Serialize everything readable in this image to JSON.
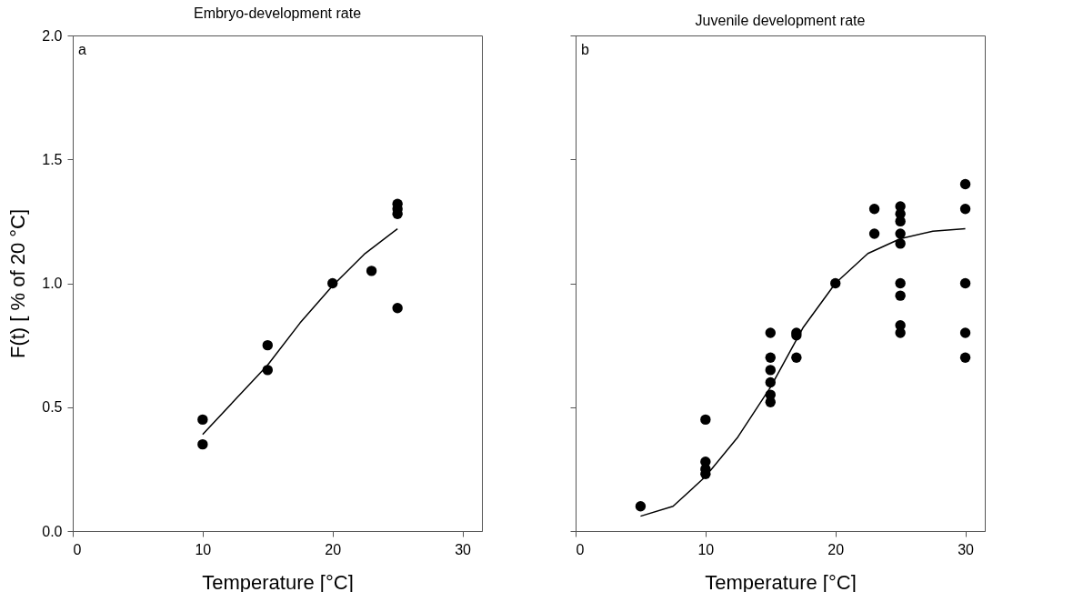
{
  "chart_data": [
    {
      "type": "scatter",
      "title": "Embryo-development rate",
      "xlabel": "Temperature [°C]",
      "ylabel": "F(t) [ % of 20 °C]",
      "annotations": [
        "a"
      ],
      "xlim": [
        0,
        31.5
      ],
      "ylim": [
        0,
        2
      ],
      "xticks": [
        0,
        10,
        20,
        30
      ],
      "yticks": [
        {
          "value": 0,
          "label": "0.0"
        },
        {
          "value": 0.5,
          "label": "0.5"
        },
        {
          "value": 1,
          "label": "1.0"
        },
        {
          "value": 1.5,
          "label": "1.5"
        },
        {
          "value": 2,
          "label": "2.0"
        }
      ],
      "grid": false,
      "series": [
        {
          "type": "scatter",
          "color": "#000000",
          "marker": "circle",
          "x": [
            10,
            10,
            15,
            15,
            20,
            23,
            25,
            25,
            25,
            25
          ],
          "values": [
            0.45,
            0.35,
            0.75,
            0.65,
            1.0,
            1.05,
            0.9,
            1.28,
            1.3,
            1.32
          ]
        },
        {
          "type": "line",
          "color": "#000000",
          "x": [
            10,
            12.5,
            15,
            17.5,
            20,
            22.5,
            25
          ],
          "values": [
            0.39,
            0.53,
            0.67,
            0.84,
            0.99,
            1.12,
            1.22
          ]
        }
      ]
    },
    {
      "type": "scatter",
      "title": "Juvenile development rate",
      "xlabel": "Temperature [°C]",
      "annotations": [
        "b"
      ],
      "xlim": [
        0,
        31.5
      ],
      "ylim": [
        0,
        2
      ],
      "xticks": [
        0,
        10,
        20,
        30
      ],
      "yticks": [
        0,
        0.5,
        1,
        1.5,
        2
      ],
      "tick_labels": "x",
      "grid": false,
      "series": [
        {
          "type": "scatter",
          "color": "#000000",
          "marker": "circle",
          "x": [
            5,
            10,
            10,
            10,
            10,
            15,
            15,
            15,
            15,
            15,
            15,
            17,
            17,
            17,
            20,
            23,
            23,
            25,
            25,
            25,
            25,
            25,
            25,
            25,
            25,
            25,
            30,
            30,
            30,
            30,
            30
          ],
          "values": [
            0.1,
            0.45,
            0.28,
            0.25,
            0.23,
            0.8,
            0.7,
            0.65,
            0.6,
            0.55,
            0.52,
            0.8,
            0.79,
            0.7,
            1.0,
            1.3,
            1.2,
            1.31,
            1.28,
            1.25,
            1.2,
            1.16,
            1.0,
            0.95,
            0.83,
            0.8,
            1.4,
            1.3,
            1.0,
            0.8,
            0.7
          ]
        },
        {
          "type": "line",
          "color": "#000000",
          "x": [
            5,
            7.5,
            10,
            12.5,
            15,
            17.5,
            20,
            22.5,
            25,
            27.5,
            30
          ],
          "values": [
            0.06,
            0.1,
            0.22,
            0.38,
            0.58,
            0.82,
            1.0,
            1.12,
            1.18,
            1.21,
            1.22
          ]
        }
      ]
    }
  ]
}
